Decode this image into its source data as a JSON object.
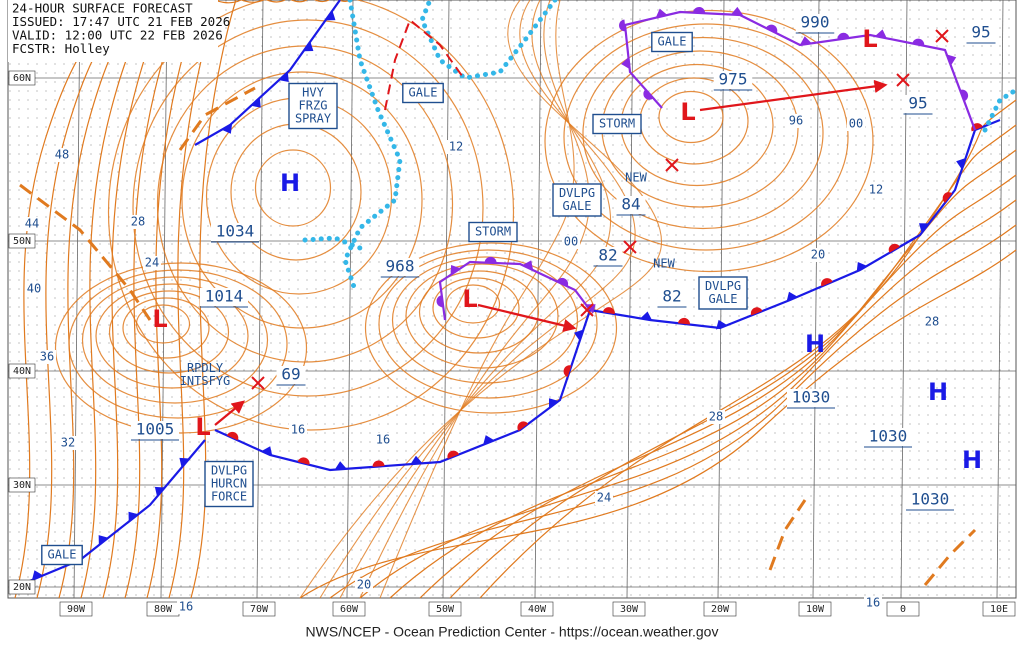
{
  "header": {
    "lines": [
      "24-HOUR SURFACE FORECAST",
      "ISSUED: 17:47 UTC 21 FEB 2026",
      "VALID: 12:00 UTC 22 FEB 2026",
      "FCSTR: Holley"
    ]
  },
  "latitude_labels": [
    "60N",
    "50N",
    "40N",
    "30N",
    "20N"
  ],
  "longitude_labels": [
    "90W",
    "80W",
    "70W",
    "60W",
    "50W",
    "40W",
    "30W",
    "20W",
    "10W",
    "0",
    "10E"
  ],
  "pressure_centers": [
    "H",
    "H",
    "H",
    "H",
    "L",
    "L",
    "L",
    "L",
    "L"
  ],
  "pressure_values": [
    "1034",
    "1014",
    "1005",
    "968",
    "975",
    "990",
    "1030",
    "1030",
    "1030",
    "84",
    "82",
    "82",
    "69",
    "95",
    "95"
  ],
  "isobar_labels": [
    "48",
    "44",
    "40",
    "36",
    "32",
    "28",
    "24",
    "12",
    "16",
    "16",
    "00",
    "96",
    "00",
    "12",
    "20",
    "28",
    "28",
    "24",
    "20",
    "16",
    "16"
  ],
  "boxed_labels": [
    {
      "lines": [
        "HVY",
        "FRZG",
        "SPRAY"
      ]
    },
    {
      "lines": [
        "GALE"
      ]
    },
    {
      "lines": [
        "GALE"
      ]
    },
    {
      "lines": [
        "STORM"
      ]
    },
    {
      "lines": [
        "DVLPG",
        "GALE"
      ]
    },
    {
      "lines": [
        "STORM"
      ]
    },
    {
      "lines": [
        "DVLPG",
        "GALE"
      ]
    },
    {
      "lines": [
        "DVLPG",
        "HURCN",
        "FORCE"
      ]
    },
    {
      "lines": [
        "GALE"
      ]
    }
  ],
  "plain_labels": [
    {
      "lines": [
        "RPDLY",
        "INTSFYG"
      ]
    },
    {
      "lines": [
        "NEW"
      ]
    },
    {
      "lines": [
        "NEW"
      ]
    }
  ],
  "footer": "NWS/NCEP - Ocean Prediction Center - https://ocean.weather.gov"
}
